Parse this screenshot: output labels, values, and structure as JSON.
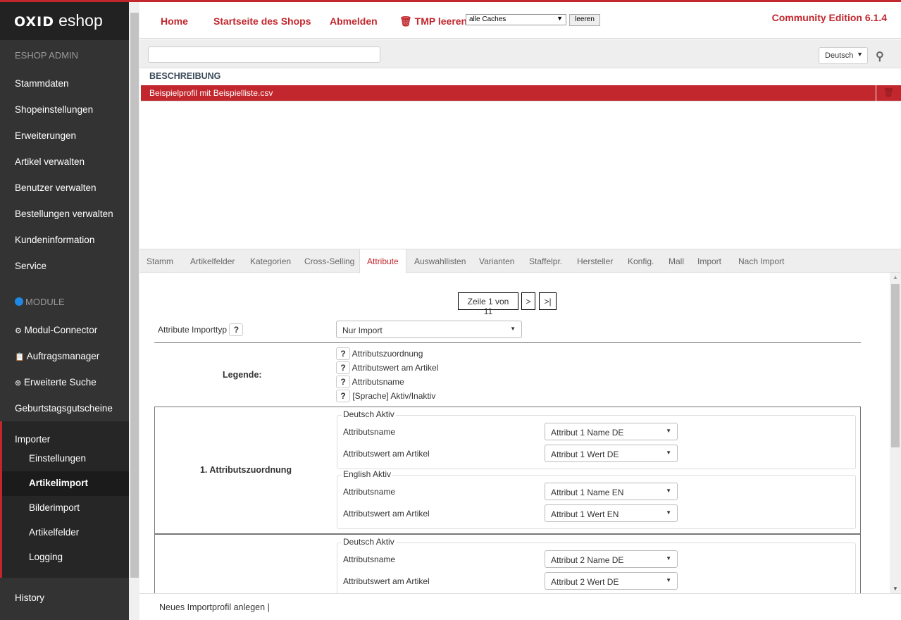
{
  "brand": {
    "logo_bold": "OXID",
    "logo_light": "eshop"
  },
  "sidebar": {
    "section_admin": "ESHOP ADMIN",
    "admin_items": [
      "Stammdaten",
      "Shopeinstellungen",
      "Erweiterungen",
      "Artikel verwalten",
      "Benutzer verwalten",
      "Bestellungen verwalten",
      "Kundeninformation",
      "Service"
    ],
    "section_module": "MODULE",
    "module_items": [
      {
        "label": "Modul-Connector",
        "icon": "gears-icon"
      },
      {
        "label": "Auftragsmanager",
        "icon": "clipboard-icon"
      },
      {
        "label": "Erweiterte Suche",
        "icon": "zoom-in-icon"
      },
      {
        "label": "Geburtstagsgutscheine",
        "icon": ""
      }
    ],
    "importer": {
      "label": "Importer",
      "items": [
        "Einstellungen",
        "Artikelimport",
        "Bilderimport",
        "Artikelfelder",
        "Logging"
      ],
      "active": "Artikelimport"
    },
    "history": "History"
  },
  "header": {
    "nav": [
      "Home",
      "Startseite des Shops",
      "Abmelden"
    ],
    "tmp_label": "TMP leeren",
    "cache_select": "alle Caches",
    "cache_button": "leeren",
    "edition": "Community Edition 6.1.4"
  },
  "toolbar": {
    "search_value": "",
    "language": "Deutsch"
  },
  "list": {
    "column": "BESCHREIBUNG",
    "rows": [
      "Beispielprofil mit Beispielliste.csv"
    ]
  },
  "tabs": {
    "items": [
      "Stamm",
      "Artikelfelder",
      "Kategorien",
      "Cross-Selling",
      "Attribute",
      "Auswahllisten",
      "Varianten",
      "Staffelpr.",
      "Hersteller",
      "Konfig.",
      "Mall",
      "Import",
      "Nach Import"
    ],
    "active": "Attribute"
  },
  "content": {
    "pagination": {
      "label": "Zeile 1 von 11",
      "next": ">",
      "last": ">|"
    },
    "import_type_label": "Attribute Importtyp",
    "import_type_value": "Nur Import",
    "help": "?",
    "legend_label": "Legende:",
    "legend_items": [
      "Attributszuordnung",
      "Attributswert am Artikel",
      "Attributsname",
      "[Sprache] Aktiv/Inaktiv"
    ],
    "groups": [
      {
        "title": "1. Attributszuordnung",
        "fieldsets": [
          {
            "legend": "Deutsch Aktiv",
            "name_label": "Attributsname",
            "name_value": "Attribut 1 Name DE",
            "value_label": "Attributswert am Artikel",
            "value_value": "Attribut 1 Wert DE"
          },
          {
            "legend": "English Aktiv",
            "name_label": "Attributsname",
            "name_value": "Attribut 1 Name EN",
            "value_label": "Attributswert am Artikel",
            "value_value": "Attribut 1 Wert EN"
          }
        ]
      },
      {
        "title": "",
        "fieldsets": [
          {
            "legend": "Deutsch Aktiv",
            "name_label": "Attributsname",
            "name_value": "Attribut 2 Name DE",
            "value_label": "Attributswert am Artikel",
            "value_value": "Attribut 2 Wert DE"
          }
        ]
      }
    ]
  },
  "footer": {
    "new_profile": "Neues Importprofil anlegen",
    "separator": "|"
  },
  "colors": {
    "accent": "#c1272d",
    "sidebar": "#333333",
    "sidebar_dark": "#222222",
    "module_icon": "#1e88e5"
  }
}
